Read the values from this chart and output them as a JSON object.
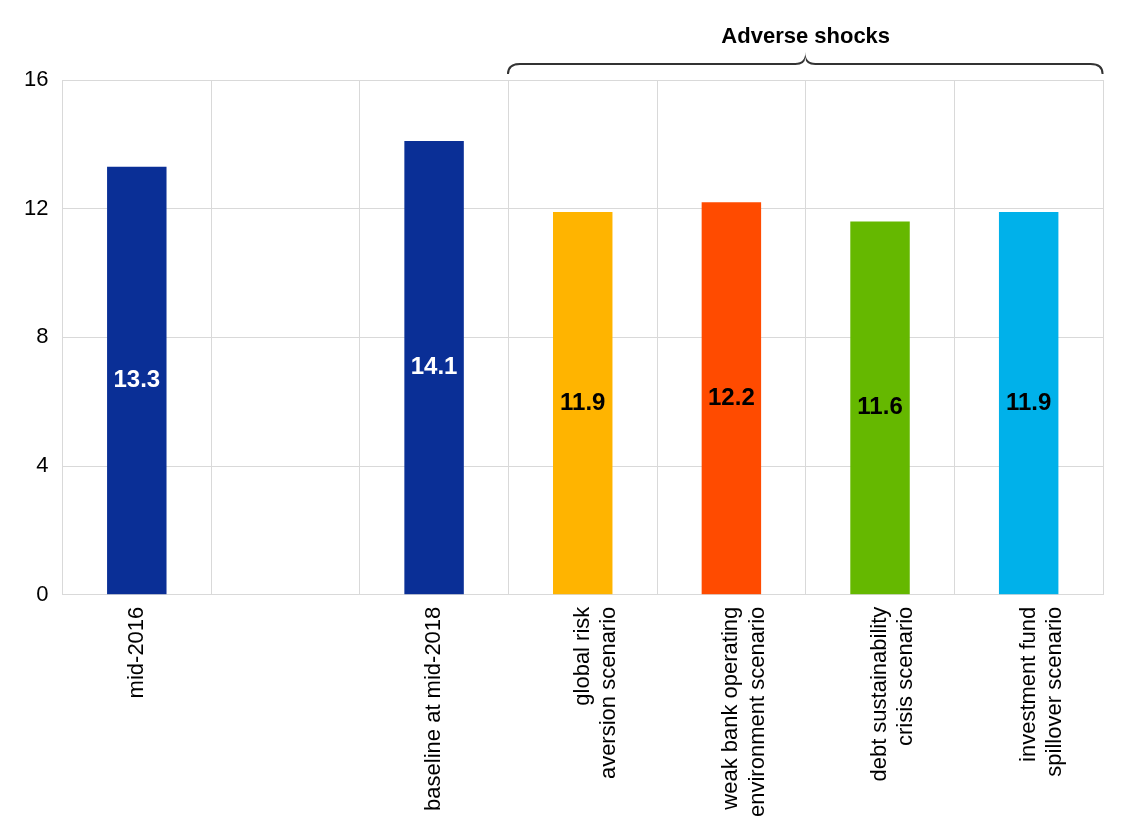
{
  "chart_data": {
    "type": "bar",
    "categories": [
      "mid-2016",
      null,
      "baseline at mid-2018",
      "global risk aversion scenario",
      "weak bank operating environment scenario",
      "debt sustainability crisis scenario",
      "investment fund spillover scenario"
    ],
    "values": [
      13.3,
      null,
      14.1,
      11.9,
      12.2,
      11.6,
      11.9
    ],
    "colors": [
      "#0a2f96",
      null,
      "#0a2f96",
      "#ffb400",
      "#ff4b00",
      "#65b800",
      "#00b1ea"
    ],
    "ylim": [
      0,
      16
    ],
    "yticks": [
      0,
      4,
      8,
      12,
      16
    ],
    "grid": true,
    "legend": false,
    "data_labels": true,
    "annotations": [
      "Adverse shocks"
    ]
  }
}
